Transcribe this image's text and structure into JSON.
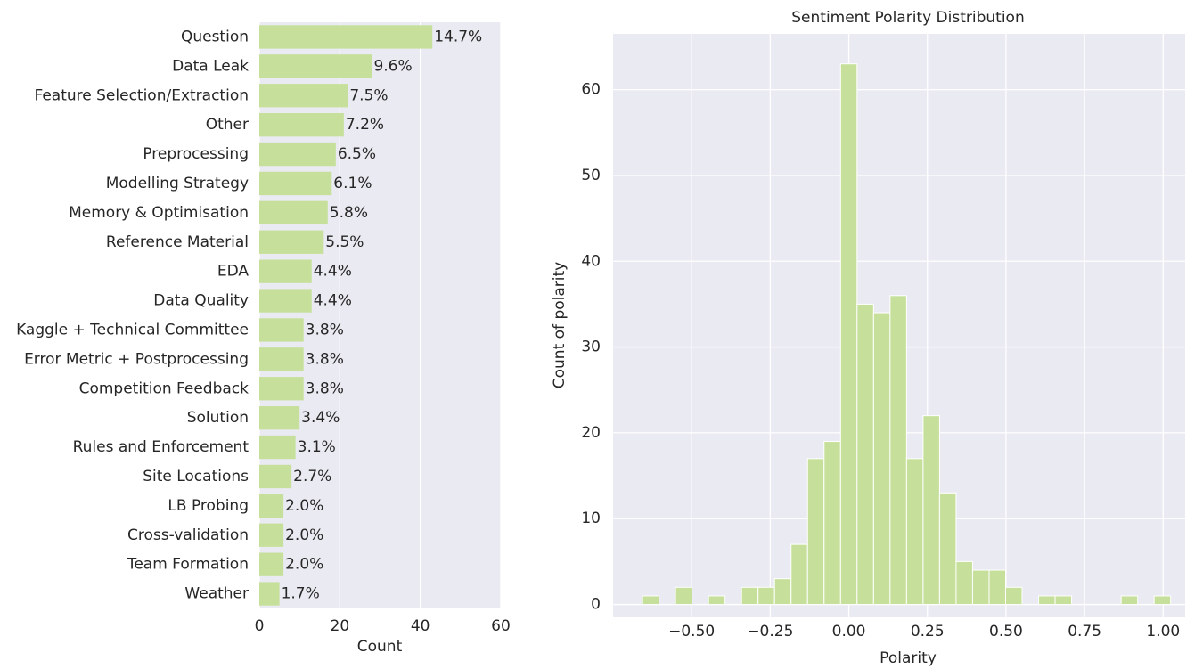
{
  "chart_data": [
    {
      "type": "barh",
      "xlabel": "Count",
      "categories": [
        "Question",
        "Data Leak",
        "Feature Selection/Extraction",
        "Other",
        "Preprocessing",
        "Modelling Strategy",
        "Memory & Optimisation",
        "Reference Material",
        "EDA",
        "Data Quality",
        "Kaggle + Technical Committee",
        "Error Metric + Postprocessing",
        "Competition Feedback",
        "Solution",
        "Rules and Enforcement",
        "Site Locations",
        "LB Probing",
        "Cross-validation",
        "Team Formation",
        "Weather"
      ],
      "values": [
        43,
        28,
        22,
        21,
        19,
        18,
        17,
        16,
        13,
        13,
        11,
        11,
        11,
        10,
        9,
        8,
        6,
        6,
        6,
        5
      ],
      "value_labels": [
        "14.7%",
        "9.6%",
        "7.5%",
        "7.2%",
        "6.5%",
        "6.1%",
        "5.8%",
        "5.5%",
        "4.4%",
        "4.4%",
        "3.8%",
        "3.8%",
        "3.8%",
        "3.4%",
        "3.1%",
        "2.7%",
        "2.0%",
        "2.0%",
        "2.0%",
        "1.7%"
      ],
      "color": "#c6e09b",
      "xlim": [
        0,
        60
      ],
      "xticks": [
        0,
        20,
        40,
        60
      ],
      "grid": true
    },
    {
      "type": "histogram",
      "title": "Sentiment Polarity Distribution",
      "xlabel": "Polarity",
      "ylabel": "Count of polarity",
      "bins": [
        -0.65625,
        -0.60375,
        -0.55125,
        -0.49875,
        -0.44625,
        -0.39375,
        -0.34125,
        -0.28875,
        -0.23625,
        -0.18375,
        -0.13125,
        -0.07875,
        -0.02625,
        0.02625,
        0.07875,
        0.13125,
        0.18375,
        0.23625,
        0.28875,
        0.34125,
        0.39375,
        0.44625,
        0.49875,
        0.55125,
        0.60375,
        0.65625,
        0.70875,
        0.76125,
        0.81375,
        0.86625,
        0.91875,
        0.97125,
        1.02375
      ],
      "values": [
        1,
        0,
        2,
        0,
        1,
        0,
        2,
        2,
        3,
        7,
        17,
        19,
        63,
        35,
        34,
        36,
        17,
        22,
        13,
        5,
        4,
        4,
        2,
        0,
        1,
        1,
        0,
        0,
        0,
        1,
        0,
        1
      ],
      "color": "#c6e09b",
      "xlim": [
        -0.75,
        1.07
      ],
      "ylim": [
        -1.5,
        66.5
      ],
      "xticks": [
        {
          "value": -0.5,
          "label": "−0.50"
        },
        {
          "value": -0.25,
          "label": "−0.25"
        },
        {
          "value": 0,
          "label": "0.00"
        },
        {
          "value": 0.25,
          "label": "0.25"
        },
        {
          "value": 0.5,
          "label": "0.50"
        },
        {
          "value": 0.75,
          "label": "0.75"
        },
        {
          "value": 1,
          "label": "1.00"
        }
      ],
      "yticks": [
        0,
        10,
        20,
        30,
        40,
        50,
        60
      ],
      "grid": true
    }
  ]
}
